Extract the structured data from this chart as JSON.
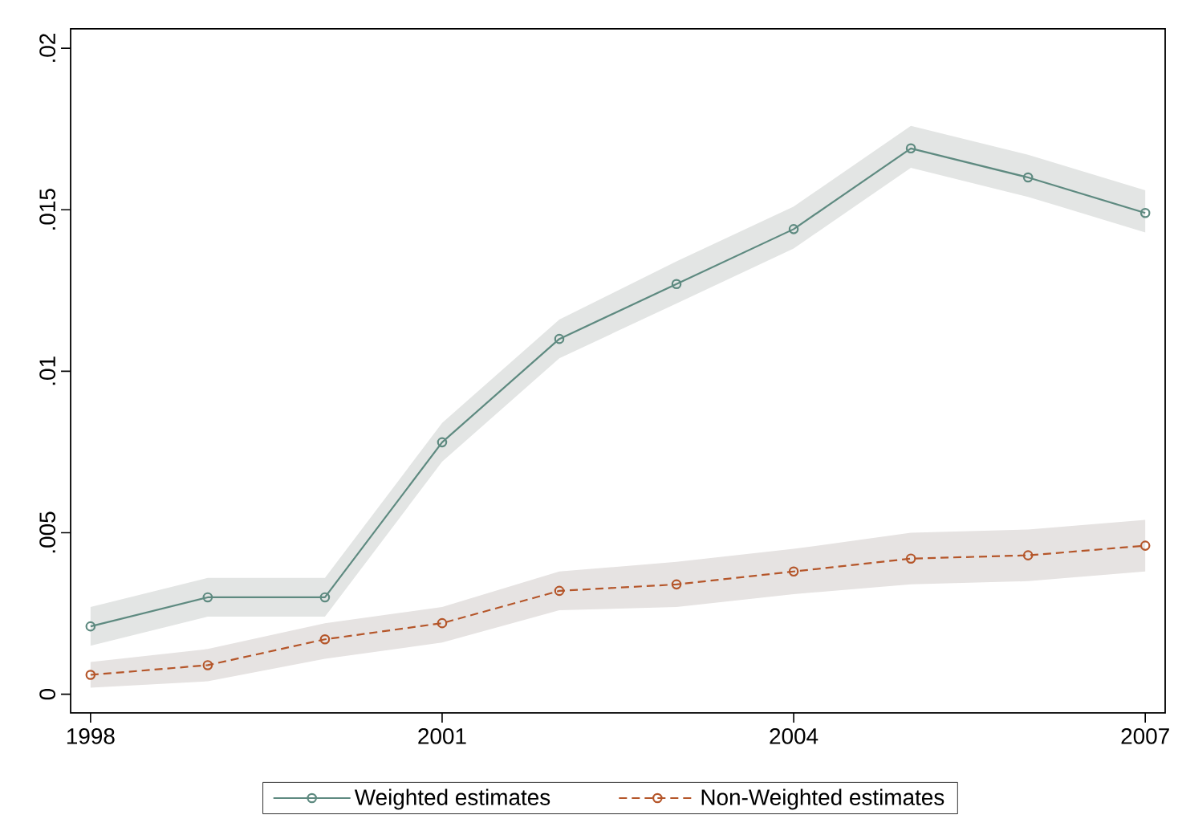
{
  "chart_data": {
    "type": "line",
    "x": [
      1998,
      1999,
      2000,
      2001,
      2002,
      2003,
      2004,
      2005,
      2006,
      2007
    ],
    "series": [
      {
        "name": "Weighted estimates",
        "color": "#5e8a80",
        "line_style": "solid",
        "values": [
          0.0021,
          0.003,
          0.003,
          0.0078,
          0.011,
          0.0127,
          0.0144,
          0.0169,
          0.016,
          0.0149
        ],
        "lower": [
          0.0015,
          0.0024,
          0.0024,
          0.0072,
          0.0104,
          0.0121,
          0.0138,
          0.0163,
          0.0154,
          0.0143
        ],
        "upper": [
          0.0027,
          0.0036,
          0.0036,
          0.0084,
          0.0116,
          0.0134,
          0.0151,
          0.0176,
          0.0167,
          0.0156
        ]
      },
      {
        "name": "Non-Weighted estimates",
        "color": "#b5562a",
        "line_style": "dashed",
        "values": [
          0.0006,
          0.0009,
          0.0017,
          0.0022,
          0.0032,
          0.0034,
          0.0038,
          0.0042,
          0.0043,
          0.0046
        ],
        "lower": [
          0.0002,
          0.0004,
          0.0011,
          0.0016,
          0.0026,
          0.0027,
          0.0031,
          0.0034,
          0.0035,
          0.0038
        ],
        "upper": [
          0.001,
          0.0014,
          0.0022,
          0.0027,
          0.0038,
          0.0041,
          0.0045,
          0.005,
          0.0051,
          0.0054
        ]
      }
    ],
    "xlim": [
      1997.83,
      2007.17
    ],
    "ylim": [
      -0.00058,
      0.0206
    ],
    "xticks": [
      1998,
      2001,
      2004,
      2007
    ],
    "yticks": [
      0,
      {
        "value": 0.005,
        "label": ".005"
      },
      {
        "value": 0.01,
        "label": ".01"
      },
      {
        "value": 0.015,
        "label": ".015"
      },
      {
        "value": 0.02,
        "label": ".02"
      }
    ],
    "marker": "circle",
    "grid": false,
    "legend": "bottom"
  }
}
